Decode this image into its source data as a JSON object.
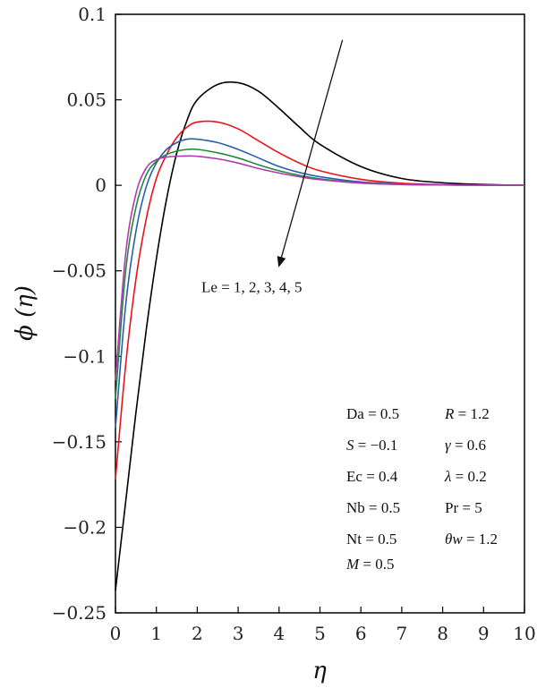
{
  "chart_data": {
    "type": "line",
    "xlabel": "η",
    "ylabel": "ϕ (η)",
    "xlim": [
      0,
      10
    ],
    "ylim": [
      -0.25,
      0.1
    ],
    "xticks": [
      0,
      1,
      2,
      3,
      4,
      5,
      6,
      7,
      8,
      9,
      10
    ],
    "yticks": [
      -0.25,
      -0.2,
      -0.15,
      -0.1,
      -0.05,
      0,
      0.05,
      0.1
    ],
    "ytick_labels": [
      "−0.25",
      "−0.2",
      "−0.15",
      "−0.1",
      "−0.05",
      "0",
      "0.05",
      "0.1"
    ],
    "xtick_labels": [
      "0",
      "1",
      "2",
      "3",
      "4",
      "5",
      "6",
      "7",
      "8",
      "9",
      "10"
    ],
    "series": [
      {
        "color": "#000000",
        "x": [
          0,
          0.25,
          0.5,
          0.75,
          1,
          1.25,
          1.5,
          1.75,
          2,
          2.5,
          3,
          3.5,
          4,
          4.5,
          5,
          6,
          7,
          8,
          9,
          10
        ],
        "values": [
          -0.237,
          -0.185,
          -0.133,
          -0.085,
          -0.043,
          -0.008,
          0.019,
          0.038,
          0.05,
          0.059,
          0.06,
          0.055,
          0.045,
          0.034,
          0.024,
          0.011,
          0.004,
          0.0015,
          0.0005,
          0
        ]
      },
      {
        "color": "#e8141b",
        "x": [
          0,
          0.25,
          0.5,
          0.75,
          1,
          1.25,
          1.5,
          1.75,
          2,
          2.5,
          3,
          3.5,
          4,
          4.5,
          5,
          6,
          7,
          8,
          9,
          10
        ],
        "values": [
          -0.172,
          -0.105,
          -0.055,
          -0.02,
          0.004,
          0.018,
          0.028,
          0.034,
          0.037,
          0.037,
          0.033,
          0.026,
          0.019,
          0.013,
          0.0085,
          0.0035,
          0.0012,
          0.0004,
          0.0001,
          0
        ]
      },
      {
        "color": "#2a5db0",
        "x": [
          0,
          0.25,
          0.5,
          0.75,
          1,
          1.25,
          1.5,
          1.75,
          2,
          2.5,
          3,
          3.5,
          4,
          4.5,
          5,
          6,
          7,
          8,
          9,
          10
        ],
        "values": [
          -0.142,
          -0.07,
          -0.027,
          -0.001,
          0.013,
          0.021,
          0.025,
          0.027,
          0.027,
          0.025,
          0.021,
          0.016,
          0.011,
          0.0075,
          0.005,
          0.002,
          0.0007,
          0.0002,
          0.0001,
          0
        ]
      },
      {
        "color": "#1f8a3a",
        "x": [
          0,
          0.25,
          0.5,
          0.75,
          1,
          1.25,
          1.5,
          1.75,
          2,
          2.5,
          3,
          3.5,
          4,
          4.5,
          5,
          6,
          7,
          8,
          9,
          10
        ],
        "values": [
          -0.125,
          -0.05,
          -0.013,
          0.006,
          0.014,
          0.018,
          0.02,
          0.021,
          0.021,
          0.019,
          0.016,
          0.012,
          0.0085,
          0.0058,
          0.0038,
          0.0015,
          0.0005,
          0.0002,
          0.0001,
          0
        ]
      },
      {
        "color": "#b03ab0",
        "x": [
          0,
          0.25,
          0.5,
          0.75,
          1,
          1.25,
          1.5,
          1.75,
          2,
          2.5,
          3,
          3.5,
          4,
          4.5,
          5,
          6,
          7,
          8,
          9,
          10
        ],
        "values": [
          -0.114,
          -0.04,
          -0.005,
          0.01,
          0.015,
          0.0165,
          0.017,
          0.0172,
          0.017,
          0.0155,
          0.013,
          0.0098,
          0.0072,
          0.005,
          0.0033,
          0.0013,
          0.0005,
          0.0002,
          0.0001,
          0
        ]
      }
    ],
    "annotation": {
      "text": "Le = 1, 2, 3, 4, 5",
      "arrow_from": [
        5.55,
        0.085
      ],
      "arrow_to": [
        4.0,
        -0.047
      ]
    },
    "parameters": {
      "left": [
        {
          "name": "Da",
          "italic": false,
          "value": " = 0.5"
        },
        {
          "name": "S",
          "italic": true,
          "value": " = −0.1"
        },
        {
          "name": "Ec",
          "italic": false,
          "value": " = 0.4"
        },
        {
          "name": "Nb",
          "italic": false,
          "value": " = 0.5"
        },
        {
          "name": "Nt",
          "italic": false,
          "value": " = 0.5"
        },
        {
          "name": "M",
          "italic": true,
          "value": " = 0.5"
        }
      ],
      "right": [
        {
          "name": "R",
          "italic": true,
          "value": " = 1.2"
        },
        {
          "name": "γ",
          "italic": true,
          "value": " = 0.6"
        },
        {
          "name": "λ",
          "italic": true,
          "value": " = 0.2"
        },
        {
          "name": "Pr",
          "italic": false,
          "value": " = 5"
        },
        {
          "name": "θw",
          "italic": true,
          "value": " = 1.2"
        }
      ]
    }
  }
}
